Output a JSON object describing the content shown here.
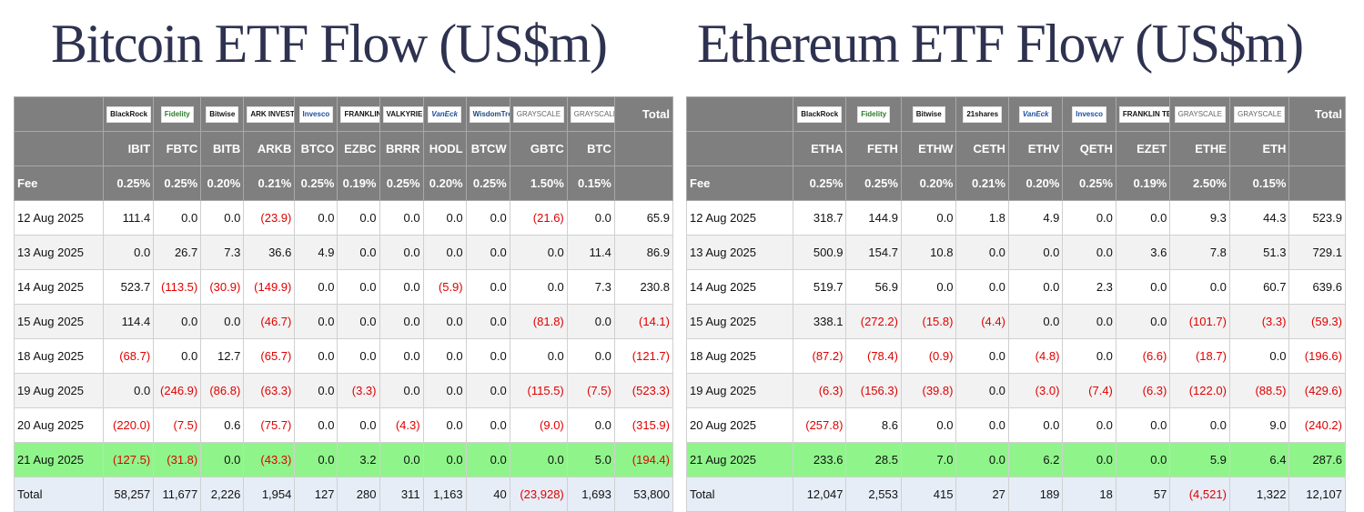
{
  "btc": {
    "title": "Bitcoin ETF Flow (US$m)",
    "logos": [
      "BlackRock",
      "Fidelity",
      "Bitwise",
      "ARK INVEST",
      "Invesco",
      "FRANKLIN TEMPLETON",
      "VALKYRIE",
      "VanEck",
      "WisdomTree",
      "GRAYSCALE",
      "GRAYSCALE"
    ],
    "total_label": "Total",
    "tickers": [
      "IBIT",
      "FBTC",
      "BITB",
      "ARKB",
      "BTCO",
      "EZBC",
      "BRRR",
      "HODL",
      "BTCW",
      "GBTC",
      "BTC"
    ],
    "fee_label": "Fee",
    "fees": [
      "0.25%",
      "0.25%",
      "0.20%",
      "0.21%",
      "0.25%",
      "0.19%",
      "0.25%",
      "0.20%",
      "0.25%",
      "1.50%",
      "0.15%"
    ],
    "rows": [
      {
        "date": "12 Aug 2025",
        "cells": [
          "111.4",
          "0.0",
          "0.0",
          "(23.9)",
          "0.0",
          "0.0",
          "0.0",
          "0.0",
          "0.0",
          "(21.6)",
          "0.0",
          "65.9"
        ]
      },
      {
        "date": "13 Aug 2025",
        "cells": [
          "0.0",
          "26.7",
          "7.3",
          "36.6",
          "4.9",
          "0.0",
          "0.0",
          "0.0",
          "0.0",
          "0.0",
          "11.4",
          "86.9"
        ]
      },
      {
        "date": "14 Aug 2025",
        "cells": [
          "523.7",
          "(113.5)",
          "(30.9)",
          "(149.9)",
          "0.0",
          "0.0",
          "0.0",
          "(5.9)",
          "0.0",
          "0.0",
          "7.3",
          "230.8"
        ]
      },
      {
        "date": "15 Aug 2025",
        "cells": [
          "114.4",
          "0.0",
          "0.0",
          "(46.7)",
          "0.0",
          "0.0",
          "0.0",
          "0.0",
          "0.0",
          "(81.8)",
          "0.0",
          "(14.1)"
        ]
      },
      {
        "date": "18 Aug 2025",
        "cells": [
          "(68.7)",
          "0.0",
          "12.7",
          "(65.7)",
          "0.0",
          "0.0",
          "0.0",
          "0.0",
          "0.0",
          "0.0",
          "0.0",
          "(121.7)"
        ]
      },
      {
        "date": "19 Aug 2025",
        "cells": [
          "0.0",
          "(246.9)",
          "(86.8)",
          "(63.3)",
          "0.0",
          "(3.3)",
          "0.0",
          "0.0",
          "0.0",
          "(115.5)",
          "(7.5)",
          "(523.3)"
        ]
      },
      {
        "date": "20 Aug 2025",
        "cells": [
          "(220.0)",
          "(7.5)",
          "0.6",
          "(75.7)",
          "0.0",
          "0.0",
          "(4.3)",
          "0.0",
          "0.0",
          "(9.0)",
          "0.0",
          "(315.9)"
        ]
      },
      {
        "date": "21 Aug 2025",
        "cells": [
          "(127.5)",
          "(31.8)",
          "0.0",
          "(43.3)",
          "0.0",
          "3.2",
          "0.0",
          "0.0",
          "0.0",
          "0.0",
          "5.0",
          "(194.4)"
        ]
      }
    ],
    "total_row": {
      "label": "Total",
      "cells": [
        "58,257",
        "11,677",
        "2,226",
        "1,954",
        "127",
        "280",
        "311",
        "1,163",
        "40",
        "(23,928)",
        "1,693",
        "53,800"
      ]
    }
  },
  "eth": {
    "title": "Ethereum ETF Flow (US$m)",
    "logos": [
      "BlackRock",
      "Fidelity",
      "Bitwise",
      "21shares",
      "VanEck",
      "Invesco",
      "FRANKLIN TEMPLETON",
      "GRAYSCALE",
      "GRAYSCALE"
    ],
    "total_label": "Total",
    "tickers": [
      "ETHA",
      "FETH",
      "ETHW",
      "CETH",
      "ETHV",
      "QETH",
      "EZET",
      "ETHE",
      "ETH"
    ],
    "fee_label": "Fee",
    "fees": [
      "0.25%",
      "0.25%",
      "0.20%",
      "0.21%",
      "0.20%",
      "0.25%",
      "0.19%",
      "2.50%",
      "0.15%"
    ],
    "rows": [
      {
        "date": "12 Aug 2025",
        "cells": [
          "318.7",
          "144.9",
          "0.0",
          "1.8",
          "4.9",
          "0.0",
          "0.0",
          "9.3",
          "44.3",
          "523.9"
        ]
      },
      {
        "date": "13 Aug 2025",
        "cells": [
          "500.9",
          "154.7",
          "10.8",
          "0.0",
          "0.0",
          "0.0",
          "3.6",
          "7.8",
          "51.3",
          "729.1"
        ]
      },
      {
        "date": "14 Aug 2025",
        "cells": [
          "519.7",
          "56.9",
          "0.0",
          "0.0",
          "0.0",
          "2.3",
          "0.0",
          "0.0",
          "60.7",
          "639.6"
        ]
      },
      {
        "date": "15 Aug 2025",
        "cells": [
          "338.1",
          "(272.2)",
          "(15.8)",
          "(4.4)",
          "0.0",
          "0.0",
          "0.0",
          "(101.7)",
          "(3.3)",
          "(59.3)"
        ]
      },
      {
        "date": "18 Aug 2025",
        "cells": [
          "(87.2)",
          "(78.4)",
          "(0.9)",
          "0.0",
          "(4.8)",
          "0.0",
          "(6.6)",
          "(18.7)",
          "0.0",
          "(196.6)"
        ]
      },
      {
        "date": "19 Aug 2025",
        "cells": [
          "(6.3)",
          "(156.3)",
          "(39.8)",
          "0.0",
          "(3.0)",
          "(7.4)",
          "(6.3)",
          "(122.0)",
          "(88.5)",
          "(429.6)"
        ]
      },
      {
        "date": "20 Aug 2025",
        "cells": [
          "(257.8)",
          "8.6",
          "0.0",
          "0.0",
          "0.0",
          "0.0",
          "0.0",
          "0.0",
          "9.0",
          "(240.2)"
        ]
      },
      {
        "date": "21 Aug 2025",
        "cells": [
          "233.6",
          "28.5",
          "7.0",
          "0.0",
          "6.2",
          "0.0",
          "0.0",
          "5.9",
          "6.4",
          "287.6"
        ]
      }
    ],
    "total_row": {
      "label": "Total",
      "cells": [
        "12,047",
        "2,553",
        "415",
        "27",
        "189",
        "18",
        "57",
        "(4,521)",
        "1,322",
        "12,107"
      ]
    }
  },
  "colors": {
    "header_bg": "#7f7f7f",
    "highlight_row": "#8ff58a",
    "total_row": "#e7edf7",
    "negative": "#e00000",
    "title": "#2e3250"
  },
  "chart_data": [
    {
      "type": "table",
      "title": "Bitcoin ETF Flow (US$m)",
      "columns": [
        "IBIT",
        "FBTC",
        "BITB",
        "ARKB",
        "BTCO",
        "EZBC",
        "BRRR",
        "HODL",
        "BTCW",
        "GBTC",
        "BTC",
        "Total"
      ],
      "rows": [
        "12 Aug 2025",
        "13 Aug 2025",
        "14 Aug 2025",
        "15 Aug 2025",
        "18 Aug 2025",
        "19 Aug 2025",
        "20 Aug 2025",
        "21 Aug 2025",
        "Total"
      ]
    },
    {
      "type": "table",
      "title": "Ethereum ETF Flow (US$m)",
      "columns": [
        "ETHA",
        "FETH",
        "ETHW",
        "CETH",
        "ETHV",
        "QETH",
        "EZET",
        "ETHE",
        "ETH",
        "Total"
      ],
      "rows": [
        "12 Aug 2025",
        "13 Aug 2025",
        "14 Aug 2025",
        "15 Aug 2025",
        "18 Aug 2025",
        "19 Aug 2025",
        "20 Aug 2025",
        "21 Aug 2025",
        "Total"
      ]
    }
  ]
}
